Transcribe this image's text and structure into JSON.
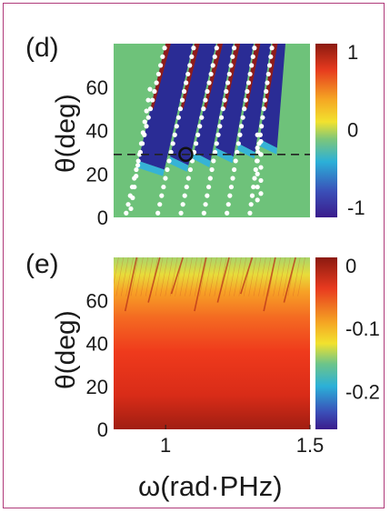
{
  "chart_data": [
    {
      "type": "heatmap",
      "panel_label": "(d)",
      "ylabel": "θ(deg)",
      "ylim": [
        0,
        80
      ],
      "xlim": [
        0.82,
        1.5
      ],
      "y_ticks": [
        "0",
        "20",
        "40",
        "60"
      ],
      "colorbar": {
        "range": [
          -1,
          1
        ],
        "ticks": [
          "1",
          "0",
          "-1"
        ]
      },
      "reference_line_y": 29,
      "marked_point": {
        "x": 1.07,
        "y": 29
      },
      "dot_curves": [
        {
          "x_at_0": 0.86,
          "x_at_80": 1.0
        },
        {
          "x_at_0": 0.97,
          "x_at_80": 1.1
        },
        {
          "x_at_0": 1.05,
          "x_at_80": 1.18
        },
        {
          "x_at_0": 1.13,
          "x_at_80": 1.24
        },
        {
          "x_at_0": 1.21,
          "x_at_80": 1.31
        },
        {
          "x_at_0": 1.29,
          "x_at_80": 1.37
        }
      ]
    },
    {
      "type": "heatmap",
      "panel_label": "(e)",
      "xlabel": "ω(rad·PHz)",
      "ylabel": "θ(deg)",
      "ylim": [
        0,
        80
      ],
      "xlim": [
        0.82,
        1.5
      ],
      "x_ticks": [
        "1",
        "1.5"
      ],
      "y_ticks": [
        "0",
        "20",
        "40",
        "60"
      ],
      "colorbar": {
        "range": [
          -0.25,
          0
        ],
        "ticks": [
          "0",
          "-0.1",
          "-0.2"
        ]
      }
    }
  ]
}
